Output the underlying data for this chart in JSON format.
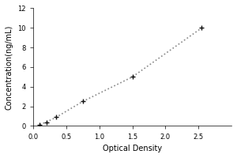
{
  "x_data": [
    0.1,
    0.2,
    0.35,
    0.75,
    1.5,
    2.55
  ],
  "y_data": [
    0.15,
    0.4,
    0.9,
    2.5,
    5.0,
    10.0
  ],
  "xlabel": "Optical Density",
  "ylabel": "Concentration(ng/mL)",
  "xlim": [
    0,
    3
  ],
  "ylim": [
    0,
    12
  ],
  "xticks": [
    0,
    0.5,
    1,
    1.5,
    2,
    2.5
  ],
  "yticks": [
    0,
    2,
    4,
    6,
    8,
    10,
    12
  ],
  "line_color": "#888888",
  "marker_color": "#111111",
  "marker_size": 5,
  "line_width": 1.2,
  "bg_color": "#ffffff",
  "label_fontsize": 7,
  "tick_fontsize": 6
}
